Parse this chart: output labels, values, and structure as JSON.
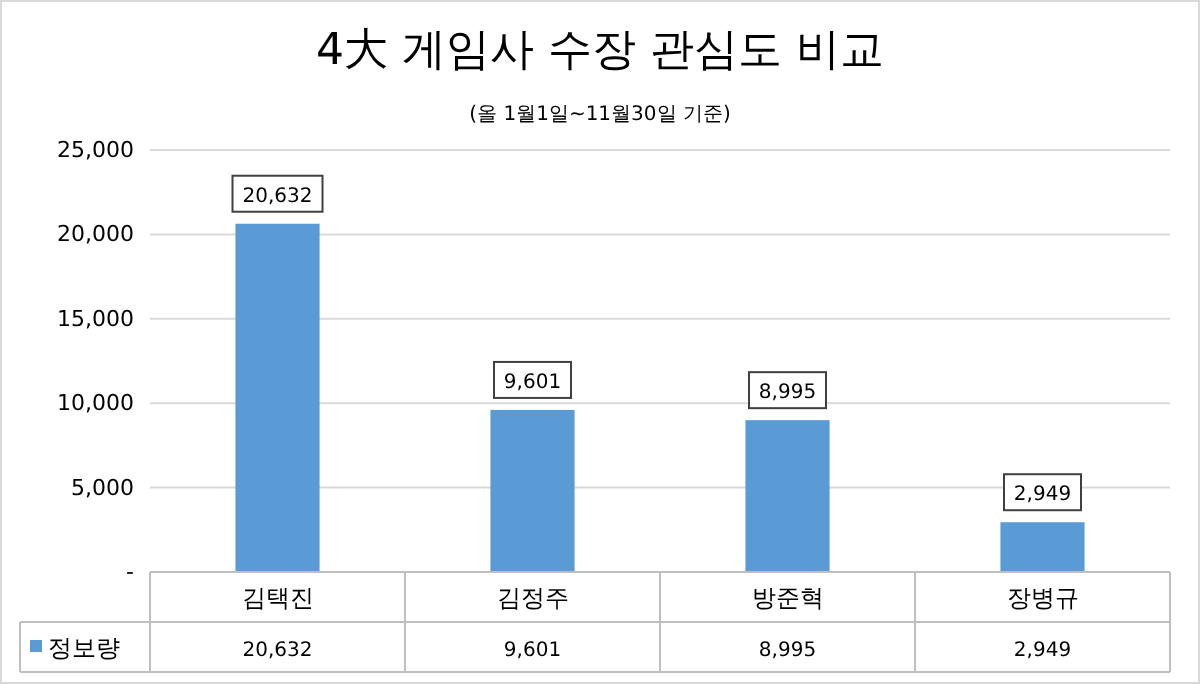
{
  "chart_data": {
    "type": "bar",
    "title": "4大 게임사 수장 관심도 비교",
    "subtitle": "(올 1월1일~11월30일 기준)",
    "categories": [
      "김택진",
      "김정주",
      "방준혁",
      "장병규"
    ],
    "series": [
      {
        "name": "정보량",
        "color": "#5b9bd5",
        "values": [
          20632,
          9601,
          8995,
          2949
        ],
        "value_labels": [
          "20,632",
          "9,601",
          "8,995",
          "2,949"
        ]
      }
    ],
    "ylim": [
      0,
      25000
    ],
    "yticks": [
      {
        "value": 0,
        "label": "-"
      },
      {
        "value": 5000,
        "label": "5,000"
      },
      {
        "value": 10000,
        "label": "10,000"
      },
      {
        "value": 15000,
        "label": "15,000"
      },
      {
        "value": 20000,
        "label": "20,000"
      },
      {
        "value": 25000,
        "label": "25,000"
      }
    ],
    "grid": "y",
    "legend": "bottom"
  }
}
